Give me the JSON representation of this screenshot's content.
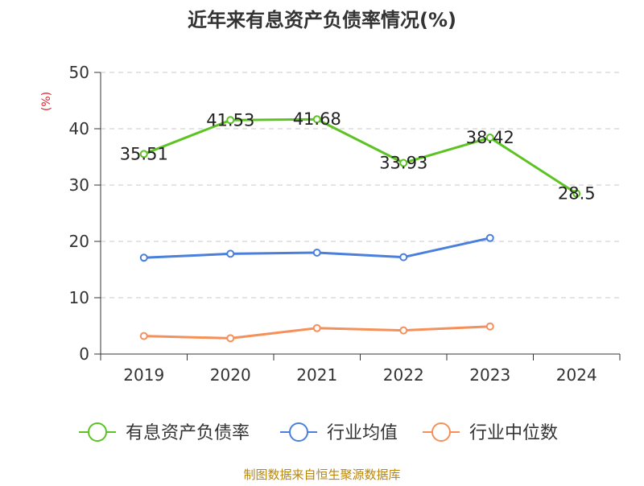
{
  "chart_data": {
    "type": "line",
    "title": "近年来有息资产负债率情况(%)",
    "ylabel": "(%)",
    "categories": [
      "2019",
      "2020",
      "2021",
      "2022",
      "2023",
      "2024"
    ],
    "ylim": [
      0,
      50
    ],
    "yticks": [
      0,
      10,
      20,
      30,
      40,
      50
    ],
    "grid": true,
    "legend_position": "bottom",
    "series": [
      {
        "name": "有息资产负债率",
        "color": "#5cc323",
        "values": [
          35.51,
          41.53,
          41.68,
          33.93,
          38.42,
          28.5
        ],
        "labels": [
          "35.51",
          "41.53",
          "41.68",
          "33.93",
          "38.42",
          "28.5"
        ]
      },
      {
        "name": "行业均值",
        "color": "#4a7fdb",
        "values": [
          17.1,
          17.8,
          18.0,
          17.2,
          20.6,
          null
        ]
      },
      {
        "name": "行业中位数",
        "color": "#f5905a",
        "values": [
          3.2,
          2.8,
          4.6,
          4.2,
          4.9,
          null
        ]
      }
    ],
    "source": "制图数据来自恒生聚源数据库"
  }
}
